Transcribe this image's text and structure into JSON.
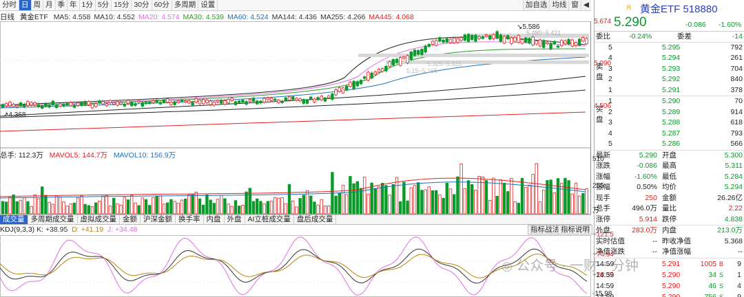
{
  "toolbar": {
    "periods": [
      "分时",
      "日",
      "周",
      "月",
      "季",
      "年",
      "1分",
      "5分",
      "15分",
      "30分",
      "60分",
      "多周期",
      "设置"
    ],
    "active": "日",
    "right_buttons": [
      "加自选",
      "均线",
      "窗"
    ]
  },
  "ma_line": {
    "prefix": "日线",
    "name": "黄金ETF",
    "items": [
      {
        "label": "MA5: 4.558",
        "color": "#333333"
      },
      {
        "label": "MA10: 4.552",
        "color": "#333333"
      },
      {
        "label": "MA20: 4.574",
        "color": "#e070e0"
      },
      {
        "label": "MA30: 4.539",
        "color": "#2a9a2a"
      },
      {
        "label": "MA60: 4.524",
        "color": "#1e6fb8"
      },
      {
        "label": "MA144: 4.436",
        "color": "#333333"
      },
      {
        "label": "MA255: 4.266",
        "color": "#333333"
      },
      {
        "label": "MA445: 4.068",
        "color": "#e02020"
      }
    ]
  },
  "price_axis": {
    "top": "5.674",
    "mid": "5.090",
    "low": "4.506"
  },
  "annotations": {
    "high": "5.586",
    "low": "4.368",
    "zone1": "5.480~5.421",
    "zone2": "5.325~5.326",
    "zone3": "5.15~5.165"
  },
  "volume": {
    "header": {
      "total": "总手: 112.3万",
      "mavol5": "MAVOL5: 144.7万",
      "mavol10": "MAVOL10: 156.9万"
    },
    "axis": {
      "top": "510",
      "mid": "255",
      "unit": "万"
    }
  },
  "tabs": {
    "items": [
      "成交量",
      "多周期成交量",
      "虚拟成交量",
      "金额",
      "沪深金额",
      "换手率",
      "内盘",
      "外盘",
      "AI立桩成交量",
      "盘后成交量"
    ],
    "active": "成交量",
    "buttons": [
      "指标战法",
      "指标说明"
    ]
  },
  "kdj": {
    "header": {
      "name": "KDJ(9,3,3)",
      "k": "K: +38.95",
      "d": "D: +41.19",
      "j": "J: +34.48"
    },
    "axis": {
      "top": "+121.5",
      "mid1": "+74.94",
      "mid2": "+28.35",
      "low": "-15.98"
    }
  },
  "watermark": "公众号 · 一财一分钟",
  "quote": {
    "badge": "R",
    "name": "黄金ETF 518880",
    "price": "5.290",
    "change": "-0.086",
    "pct": "-1.60%",
    "webi": {
      "label": "委比",
      "value": "-0.24%",
      "diff_label": "委差",
      "diff": "-14"
    },
    "sell_label": "卖盘",
    "buy_label": "买盘",
    "asks": [
      {
        "lvl": "5",
        "price": "5.295",
        "vol": "792"
      },
      {
        "lvl": "4",
        "price": "5.294",
        "vol": "261"
      },
      {
        "lvl": "3",
        "price": "5.293",
        "vol": "704"
      },
      {
        "lvl": "2",
        "price": "5.292",
        "vol": "840"
      },
      {
        "lvl": "1",
        "price": "5.291",
        "vol": "378"
      }
    ],
    "bids": [
      {
        "lvl": "1",
        "price": "5.290",
        "vol": "70"
      },
      {
        "lvl": "2",
        "price": "5.289",
        "vol": "914"
      },
      {
        "lvl": "3",
        "price": "5.288",
        "vol": "618"
      },
      {
        "lvl": "4",
        "price": "5.287",
        "vol": "793"
      },
      {
        "lvl": "5",
        "price": "5.286",
        "vol": "566"
      }
    ],
    "stats": [
      {
        "l1": "最新",
        "v1": "5.290",
        "c1": "green",
        "l2": "开盘",
        "v2": "5.300",
        "c2": "green"
      },
      {
        "l1": "涨跌",
        "v1": "-0.086",
        "c1": "green",
        "l2": "最高",
        "v2": "5.311",
        "c2": "green"
      },
      {
        "l1": "涨幅",
        "v1": "-1.60%",
        "c1": "green",
        "l2": "最低",
        "v2": "5.284",
        "c2": "green"
      },
      {
        "l1": "振幅",
        "v1": "0.50%",
        "c1": "black",
        "l2": "均价",
        "v2": "5.294",
        "c2": "green"
      },
      {
        "l1": "现手",
        "v1": "250",
        "c1": "red",
        "l2": "金额",
        "v2": "26.26亿",
        "c2": "black"
      },
      {
        "l1": "总手",
        "v1": "496.0万",
        "c1": "black",
        "l2": "量比",
        "v2": "2.22",
        "c2": "red"
      },
      {
        "l1": "涨停",
        "v1": "5.914",
        "c1": "red",
        "l2": "跌停",
        "v2": "4.838",
        "c2": "green"
      }
    ],
    "extra": [
      {
        "l1": "外盘",
        "v1": "283.0万",
        "c1": "red",
        "l2": "内盘",
        "v2": "213.0万",
        "c2": "green"
      },
      {
        "l1": "实时估值",
        "v1": "--",
        "c1": "black",
        "l2": "昨收净值",
        "v2": "5.368",
        "c2": "black"
      },
      {
        "l1": "净值涨跌",
        "v1": "--",
        "c1": "black",
        "l2": "净值涨幅",
        "v2": "--",
        "c2": "black"
      }
    ],
    "ticks": [
      {
        "time": "14:59",
        "price": "5.291",
        "vol": "1005",
        "flag": "B",
        "flag_color": "red",
        "num": "9"
      },
      {
        "time": "14:59",
        "price": "5.290",
        "vol": "34",
        "flag": "S",
        "flag_color": "green",
        "num": "1"
      },
      {
        "time": "14:59",
        "price": "5.290",
        "vol": "46",
        "flag": "S",
        "flag_color": "green",
        "num": "4"
      },
      {
        "time": "14:59",
        "price": "5.290",
        "vol": "756",
        "flag": "S",
        "flag_color": "green",
        "num": "9"
      }
    ]
  },
  "colors": {
    "up": "#e02020",
    "down": "#0a9a2a",
    "accent": "#2a65c8"
  }
}
